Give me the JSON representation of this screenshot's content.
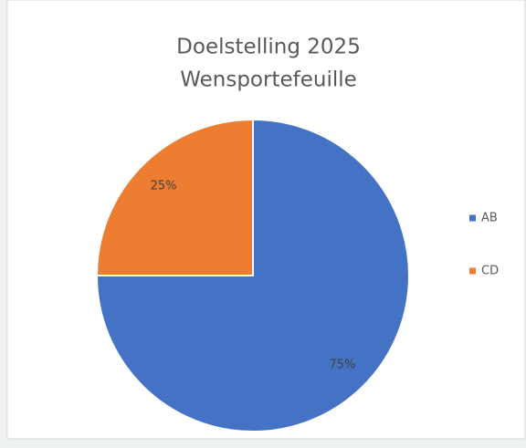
{
  "chart_data": {
    "type": "pie",
    "title": [
      "Doelstelling 2025",
      "Wensportefeuille"
    ],
    "categories": [
      "AB",
      "CD"
    ],
    "values": [
      75,
      25
    ],
    "value_labels": [
      "75%",
      "25%"
    ],
    "colors": [
      "#4472c4",
      "#ed7d31"
    ],
    "legend": "right"
  }
}
